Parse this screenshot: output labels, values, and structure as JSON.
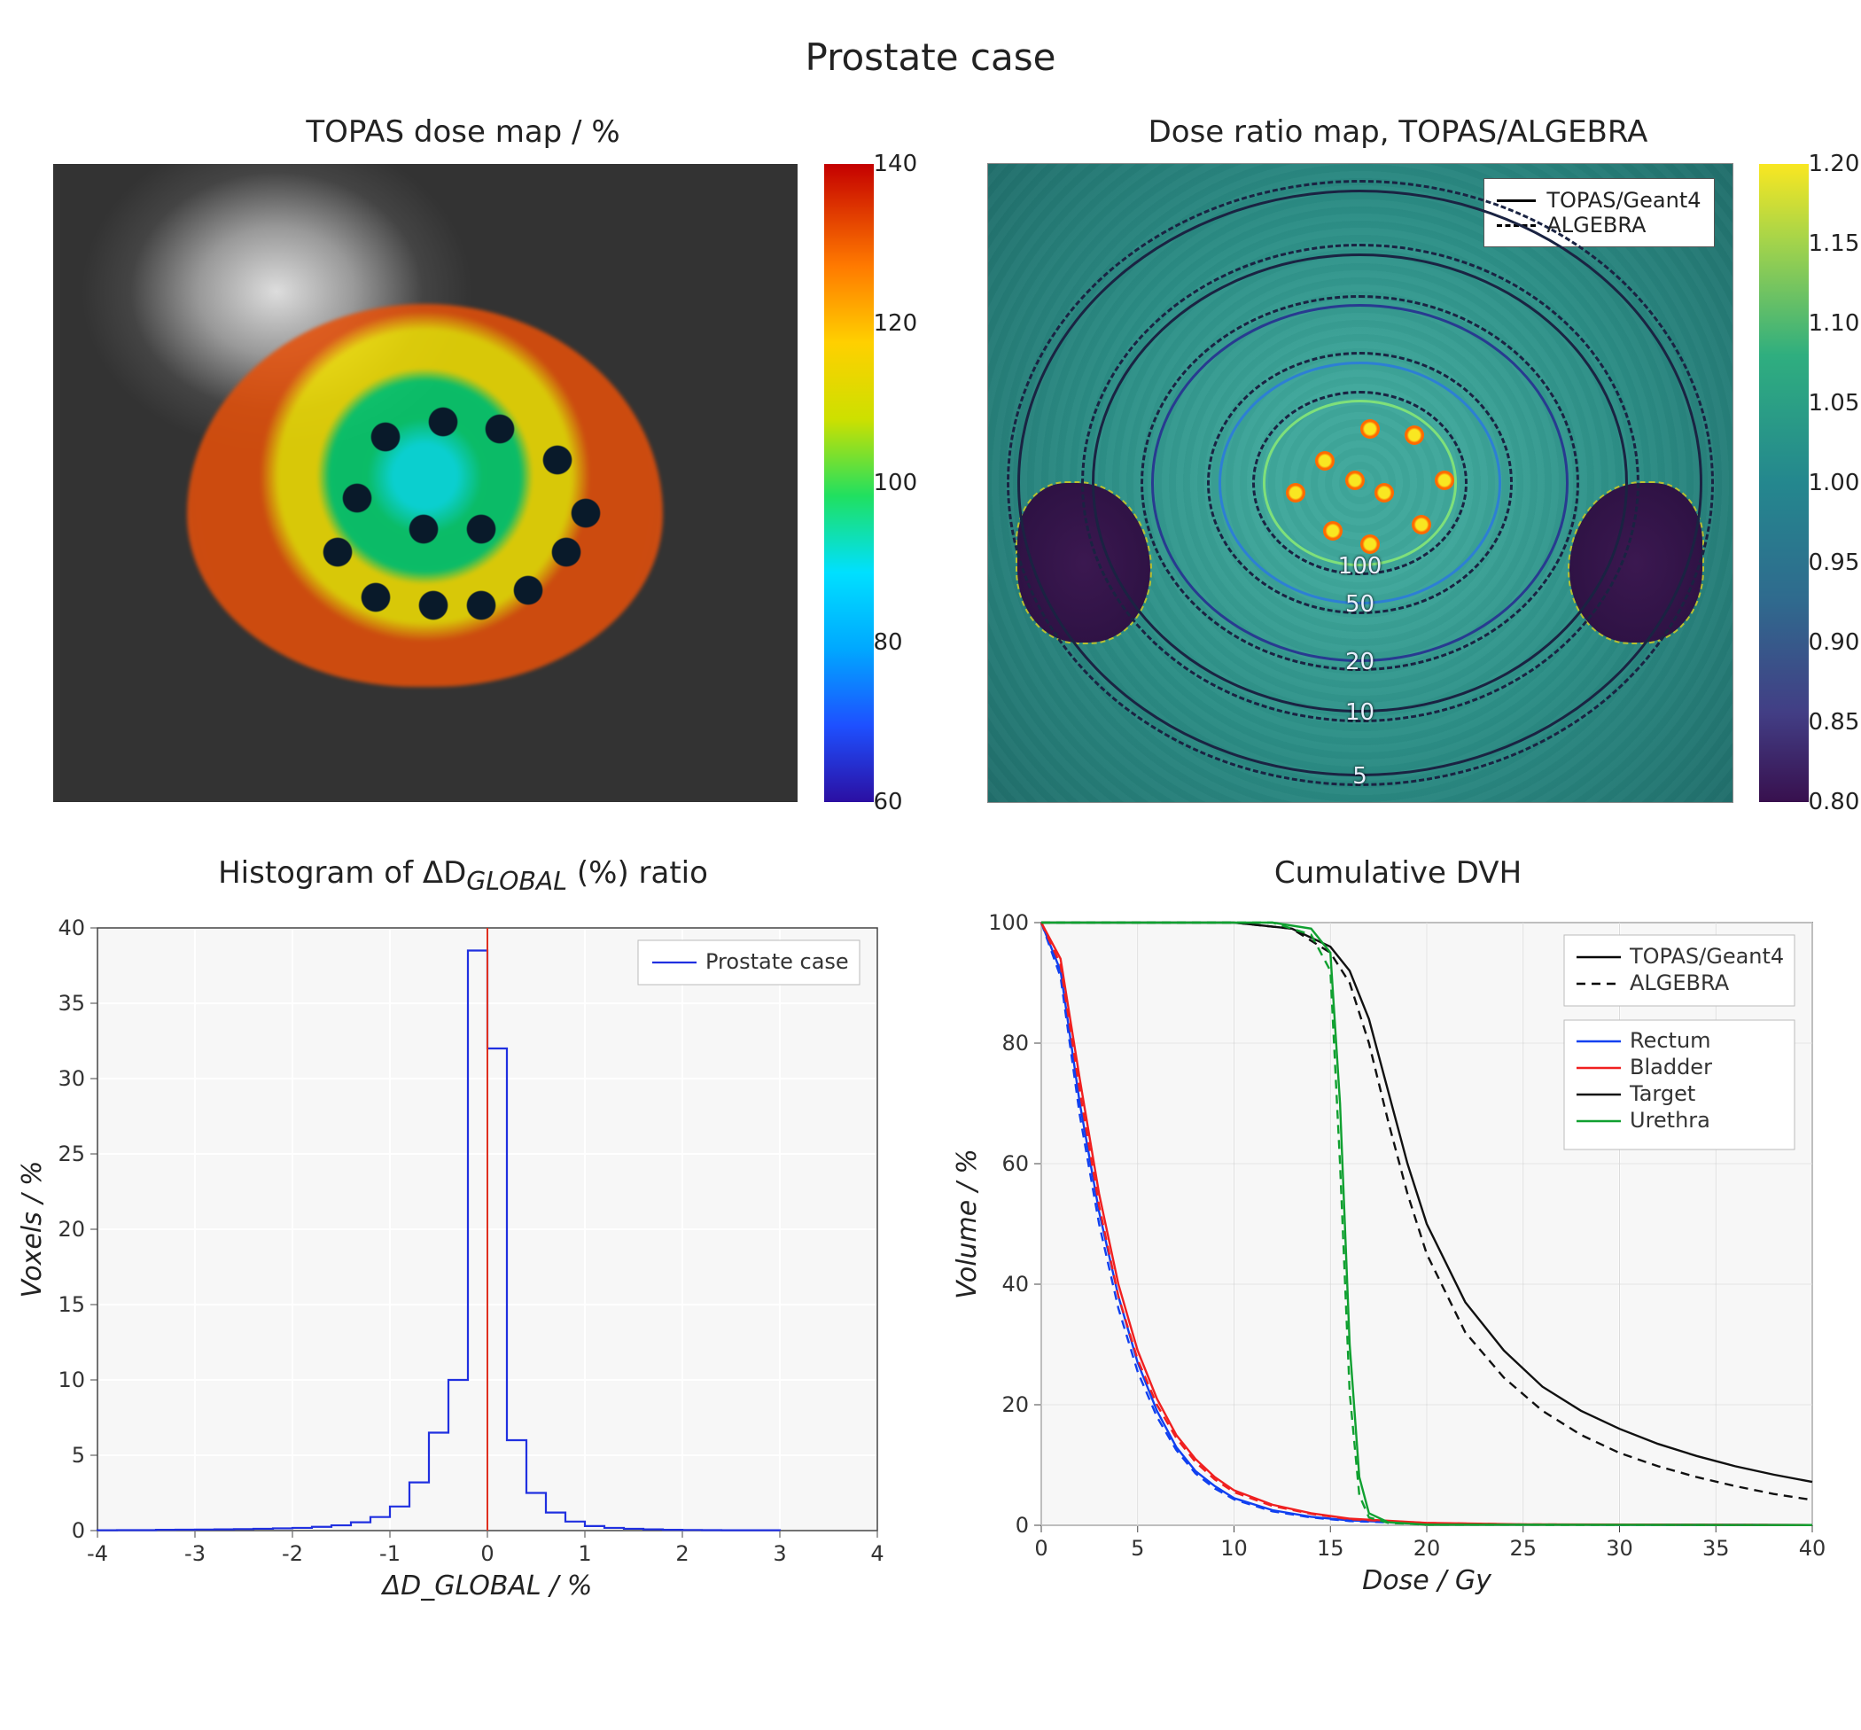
{
  "figure_title": "Prostate case",
  "panel_a": {
    "title": "TOPAS dose map / %",
    "ct_grey_range": [
      40,
      220
    ],
    "overlay_opacity": 0.9,
    "colorbar": {
      "min": 60,
      "max": 140,
      "ticks": [
        60,
        80,
        100,
        120,
        140
      ],
      "colors_bottom_to_top": [
        "#2b0fa2",
        "#1e50ff",
        "#00a8ff",
        "#00e0ff",
        "#20e060",
        "#cde000",
        "#ffd000",
        "#ff7a00",
        "#c40000"
      ]
    },
    "seed_positions_pct": [
      [
        38,
        30
      ],
      [
        50,
        26
      ],
      [
        62,
        28
      ],
      [
        74,
        36
      ],
      [
        80,
        50
      ],
      [
        32,
        46
      ],
      [
        28,
        60
      ],
      [
        36,
        72
      ],
      [
        48,
        74
      ],
      [
        58,
        74
      ],
      [
        68,
        70
      ],
      [
        76,
        60
      ],
      [
        58,
        54
      ],
      [
        46,
        54
      ]
    ]
  },
  "panel_b": {
    "title": "Dose ratio map, TOPAS/ALGEBRA",
    "colorbar": {
      "min": 0.8,
      "max": 1.2,
      "ticks": [
        0.8,
        0.85,
        0.9,
        0.95,
        1.0,
        1.05,
        1.1,
        1.15,
        1.2
      ],
      "palette": "viridis"
    },
    "legend": {
      "solid": "TOPAS/Geant4",
      "dashed": "ALGEBRA"
    },
    "isodose_contours": [
      {
        "value": 5,
        "radius_pct": 46,
        "color": "#1a2342"
      },
      {
        "value": 10,
        "radius_pct": 36,
        "color": "#1a2342"
      },
      {
        "value": 20,
        "radius_pct": 28,
        "color": "#283a90"
      },
      {
        "value": 50,
        "radius_pct": 19,
        "color": "#2d7fd4"
      },
      {
        "value": 100,
        "radius_pct": 13,
        "color": "#7fe07a"
      }
    ],
    "hotspots_pct": [
      [
        44,
        45
      ],
      [
        50,
        40
      ],
      [
        56,
        41
      ],
      [
        60,
        48
      ],
      [
        57,
        55
      ],
      [
        50,
        58
      ],
      [
        45,
        56
      ],
      [
        40,
        50
      ],
      [
        52,
        50
      ],
      [
        48,
        48
      ]
    ]
  },
  "panel_c": {
    "title": "Histogram of ΔD_{GLOBAL} (%) ratio",
    "legend_label": "Prostate case",
    "xlabel": "ΔD_{GLOBAL} / %",
    "ylabel": "Voxels / %",
    "xlim": [
      -4,
      4
    ],
    "xtick_step": 1,
    "ylim": [
      0,
      40
    ],
    "ytick_step": 5,
    "line_color": "#2030e0",
    "ref_line": {
      "x": 0,
      "color": "#e03020"
    },
    "bin_width": 0.2,
    "bins": [
      [
        -3.9,
        0.02
      ],
      [
        -3.7,
        0.03
      ],
      [
        -3.5,
        0.03
      ],
      [
        -3.3,
        0.05
      ],
      [
        -3.1,
        0.06
      ],
      [
        -2.9,
        0.07
      ],
      [
        -2.7,
        0.08
      ],
      [
        -2.5,
        0.1
      ],
      [
        -2.3,
        0.12
      ],
      [
        -2.1,
        0.15
      ],
      [
        -1.9,
        0.18
      ],
      [
        -1.7,
        0.25
      ],
      [
        -1.5,
        0.35
      ],
      [
        -1.3,
        0.55
      ],
      [
        -1.1,
        0.9
      ],
      [
        -0.9,
        1.6
      ],
      [
        -0.7,
        3.2
      ],
      [
        -0.5,
        6.5
      ],
      [
        -0.3,
        10.0
      ],
      [
        -0.1,
        38.5
      ],
      [
        0.1,
        32.0
      ],
      [
        0.3,
        6.0
      ],
      [
        0.5,
        2.5
      ],
      [
        0.7,
        1.2
      ],
      [
        0.9,
        0.6
      ],
      [
        1.1,
        0.3
      ],
      [
        1.3,
        0.18
      ],
      [
        1.5,
        0.12
      ],
      [
        1.7,
        0.08
      ],
      [
        1.9,
        0.05
      ],
      [
        2.1,
        0.04
      ],
      [
        2.3,
        0.03
      ],
      [
        2.5,
        0.02
      ],
      [
        2.7,
        0.02
      ],
      [
        2.9,
        0.02
      ]
    ]
  },
  "panel_d": {
    "title": "Cumulative DVH",
    "xlabel": "Dose / Gy",
    "ylabel": "Volume / %",
    "xlim": [
      0,
      40
    ],
    "xtick_step": 5,
    "ylim": [
      0,
      100
    ],
    "ytick_step": 20,
    "grid_color": "#dcdcdc",
    "line_style_legend": {
      "solid": "TOPAS/Geant4",
      "dashed": "ALGEBRA"
    },
    "structures": [
      {
        "name": "Rectum",
        "color": "#1040f0",
        "solid": [
          [
            0,
            100
          ],
          [
            1,
            92
          ],
          [
            2,
            70
          ],
          [
            3,
            52
          ],
          [
            4,
            38
          ],
          [
            5,
            27
          ],
          [
            6,
            19
          ],
          [
            7,
            13
          ],
          [
            8,
            9
          ],
          [
            9,
            6.5
          ],
          [
            10,
            4.5
          ],
          [
            12,
            2.5
          ],
          [
            14,
            1.4
          ],
          [
            16,
            0.8
          ],
          [
            20,
            0.3
          ],
          [
            25,
            0.12
          ],
          [
            40,
            0.05
          ]
        ],
        "dashed": [
          [
            0,
            100
          ],
          [
            1,
            91
          ],
          [
            2,
            68
          ],
          [
            3,
            50
          ],
          [
            4,
            36
          ],
          [
            5,
            25.5
          ],
          [
            6,
            18
          ],
          [
            7,
            12.5
          ],
          [
            8,
            8.6
          ],
          [
            9,
            6.1
          ],
          [
            10,
            4.3
          ],
          [
            12,
            2.3
          ],
          [
            14,
            1.3
          ],
          [
            16,
            0.7
          ],
          [
            20,
            0.28
          ],
          [
            25,
            0.11
          ],
          [
            40,
            0.04
          ]
        ]
      },
      {
        "name": "Bladder",
        "color": "#f02020",
        "solid": [
          [
            0,
            100
          ],
          [
            1,
            94
          ],
          [
            2,
            74
          ],
          [
            3,
            55
          ],
          [
            4,
            40
          ],
          [
            5,
            29
          ],
          [
            6,
            21
          ],
          [
            7,
            15
          ],
          [
            8,
            11
          ],
          [
            9,
            8
          ],
          [
            10,
            5.8
          ],
          [
            12,
            3.4
          ],
          [
            14,
            2.0
          ],
          [
            16,
            1.1
          ],
          [
            20,
            0.4
          ],
          [
            25,
            0.15
          ],
          [
            40,
            0.05
          ]
        ],
        "dashed": [
          [
            0,
            100
          ],
          [
            1,
            93
          ],
          [
            2,
            72
          ],
          [
            3,
            53
          ],
          [
            4,
            38
          ],
          [
            5,
            27.5
          ],
          [
            6,
            20
          ],
          [
            7,
            14.5
          ],
          [
            8,
            10.5
          ],
          [
            9,
            7.6
          ],
          [
            10,
            5.5
          ],
          [
            12,
            3.2
          ],
          [
            14,
            1.9
          ],
          [
            16,
            1.0
          ],
          [
            20,
            0.38
          ],
          [
            25,
            0.14
          ],
          [
            40,
            0.04
          ]
        ]
      },
      {
        "name": "Target",
        "color": "#111111",
        "solid": [
          [
            0,
            100
          ],
          [
            5,
            100
          ],
          [
            10,
            100
          ],
          [
            13,
            99
          ],
          [
            15,
            96
          ],
          [
            16,
            92
          ],
          [
            17,
            84
          ],
          [
            18,
            72
          ],
          [
            19,
            60
          ],
          [
            20,
            50
          ],
          [
            22,
            37
          ],
          [
            24,
            29
          ],
          [
            26,
            23
          ],
          [
            28,
            19
          ],
          [
            30,
            16
          ],
          [
            32,
            13.5
          ],
          [
            34,
            11.5
          ],
          [
            36,
            9.8
          ],
          [
            38,
            8.4
          ],
          [
            40,
            7.2
          ]
        ],
        "dashed": [
          [
            0,
            100
          ],
          [
            5,
            100
          ],
          [
            10,
            100
          ],
          [
            13,
            99
          ],
          [
            15,
            95
          ],
          [
            16,
            90
          ],
          [
            17,
            80
          ],
          [
            18,
            67
          ],
          [
            19,
            55
          ],
          [
            20,
            45
          ],
          [
            22,
            32
          ],
          [
            24,
            24.5
          ],
          [
            26,
            19
          ],
          [
            28,
            15
          ],
          [
            30,
            12
          ],
          [
            32,
            9.8
          ],
          [
            34,
            8.0
          ],
          [
            36,
            6.5
          ],
          [
            38,
            5.2
          ],
          [
            40,
            4.2
          ]
        ]
      },
      {
        "name": "Urethra",
        "color": "#10a030",
        "solid": [
          [
            0,
            100
          ],
          [
            8,
            100
          ],
          [
            12,
            100
          ],
          [
            14,
            99
          ],
          [
            15,
            95
          ],
          [
            15.5,
            70
          ],
          [
            16,
            30
          ],
          [
            16.5,
            8
          ],
          [
            17,
            2
          ],
          [
            18,
            0.5
          ],
          [
            20,
            0.1
          ],
          [
            40,
            0.05
          ]
        ],
        "dashed": [
          [
            0,
            100
          ],
          [
            8,
            100
          ],
          [
            12,
            100
          ],
          [
            14,
            98
          ],
          [
            15,
            92
          ],
          [
            15.5,
            60
          ],
          [
            16,
            22
          ],
          [
            16.5,
            5
          ],
          [
            17,
            1.3
          ],
          [
            18,
            0.4
          ],
          [
            20,
            0.09
          ],
          [
            40,
            0.04
          ]
        ]
      }
    ]
  },
  "global_style": {
    "background_color": "#ffffff",
    "title_fontsize": 42,
    "panel_title_fontsize": 34,
    "axis_fontsize": 24,
    "label_fontsize": 30,
    "legend_fontsize": 22
  }
}
